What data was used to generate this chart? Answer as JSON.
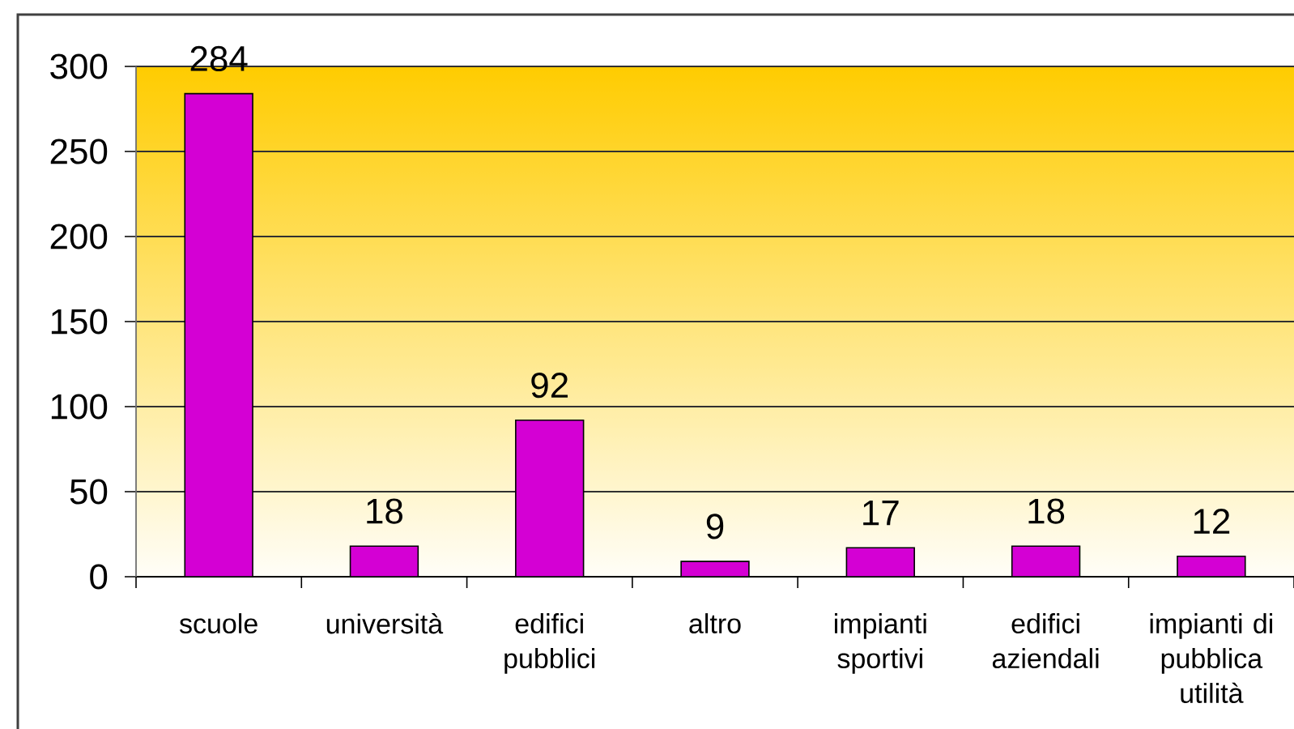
{
  "chart_data": {
    "type": "bar",
    "categories": [
      "scuole",
      "università",
      "edifici pubblici",
      "altro",
      "impianti sportivi",
      "edifici aziendali",
      "impianti di pubblica utilità"
    ],
    "values": [
      284,
      18,
      92,
      9,
      17,
      18,
      12
    ],
    "color": "#d400d4",
    "ylim": [
      0,
      300
    ],
    "yticks": [
      0,
      50,
      100,
      150,
      200,
      250,
      300
    ],
    "grid": "y",
    "data_labels": true
  }
}
